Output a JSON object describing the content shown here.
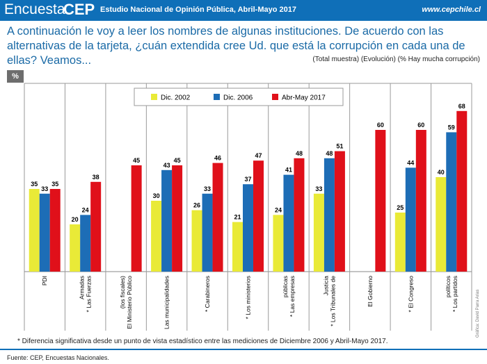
{
  "header": {
    "logo_part1": "Encuesta",
    "logo_part2": "CEP",
    "title": "Estudio Nacional de Opinión Pública, Abril-Mayo 2017",
    "url": "www.cepchile.cl"
  },
  "question": "A continuación le voy a leer los nombres de algunas instituciones. De acuerdo con las alternativas de la tarjeta, ¿cuán extendida cree Ud. que está la corrupción en cada una de ellas? Veamos...",
  "sample_note": "(Total muestra) (Evolución) (% Hay mucha corrupción)",
  "unit_badge": "%",
  "footnote": "* Diferencia significativa desde un punto de vista estadístico entre las mediciones de Diciembre 2006 y Abril-Mayo 2017.",
  "source": "Fuente: CEP, Encuestas Nacionales.",
  "credit": "Gráfica: David Parra Arias",
  "chart_data": {
    "type": "bar",
    "legend_position": "top-center",
    "grid": false,
    "ylim": [
      0,
      80
    ],
    "categories": [
      [
        "PDI"
      ],
      [
        "* Las Fuerzas",
        "Armadas"
      ],
      [
        "El Ministerio Público",
        "(los fiscales)"
      ],
      [
        "Las municipalidades"
      ],
      [
        "* Carabineros"
      ],
      [
        "* Los ministerios"
      ],
      [
        "* Las empresas",
        "públicas"
      ],
      [
        "* Los Tribunales de",
        "Justicia"
      ],
      [
        "El Gobierno"
      ],
      [
        "* El Congreso"
      ],
      [
        "* Los partidos",
        "políticos"
      ]
    ],
    "series": [
      {
        "name": "Dic. 2002",
        "color": "#e9ea37",
        "values": [
          35,
          20,
          null,
          30,
          26,
          21,
          24,
          33,
          null,
          25,
          40
        ]
      },
      {
        "name": "Dic. 2006",
        "color": "#1d6db6",
        "values": [
          33,
          24,
          null,
          43,
          33,
          37,
          41,
          48,
          null,
          44,
          59
        ]
      },
      {
        "name": "Abr-May 2017",
        "color": "#e0101a",
        "values": [
          35,
          38,
          45,
          45,
          46,
          47,
          48,
          51,
          60,
          60,
          68
        ]
      }
    ]
  }
}
